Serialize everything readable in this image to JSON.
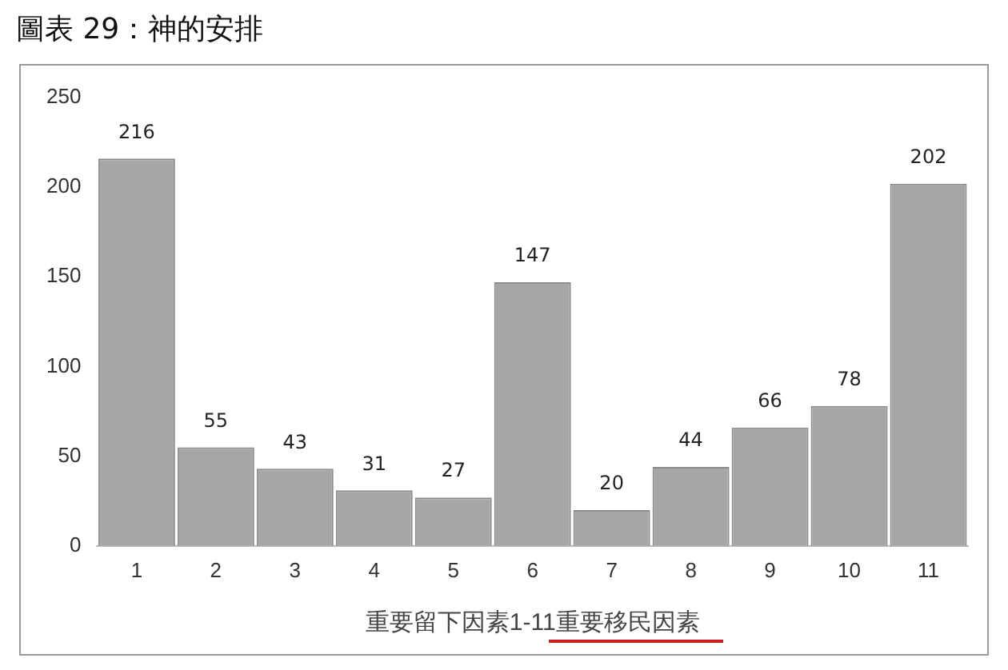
{
  "chart_data": {
    "type": "bar",
    "title": "圖表 29：神的安排",
    "xlabel": "重要留下因素1-11重要移民因素",
    "categories": [
      "1",
      "2",
      "3",
      "4",
      "5",
      "6",
      "7",
      "8",
      "9",
      "10",
      "11"
    ],
    "values": [
      216,
      55,
      43,
      31,
      27,
      147,
      20,
      44,
      66,
      78,
      202
    ],
    "color": "#a6a6a6",
    "ylim": [
      0,
      250
    ],
    "yticks": [
      0,
      50,
      100,
      150,
      200,
      250
    ],
    "grid": false,
    "legend": false,
    "data_labels": true
  }
}
